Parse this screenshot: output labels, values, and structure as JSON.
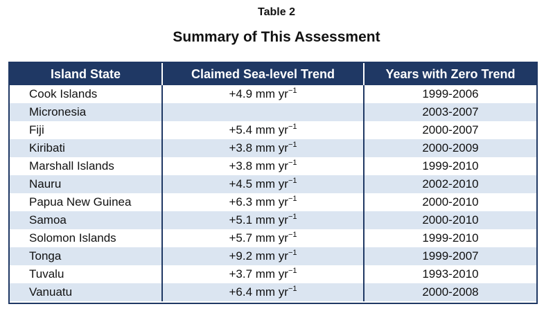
{
  "caption": {
    "label": "Table 2",
    "title": "Summary of This Assessment"
  },
  "table": {
    "headers": [
      "Island State",
      "Claimed Sea-level Trend",
      "Years with Zero Trend"
    ],
    "unit": "mm yr",
    "unit_exponent": "−1",
    "rows": [
      {
        "state": "Cook Islands",
        "trend": "+4.9",
        "years": "1999-2006"
      },
      {
        "state": "Micronesia",
        "trend": "",
        "years": "2003-2007"
      },
      {
        "state": "Fiji",
        "trend": "+5.4",
        "years": "2000-2007"
      },
      {
        "state": "Kiribati",
        "trend": "+3.8",
        "years": "2000-2009"
      },
      {
        "state": "Marshall Islands",
        "trend": "+3.8",
        "years": "1999-2010"
      },
      {
        "state": "Nauru",
        "trend": "+4.5",
        "years": "2002-2010"
      },
      {
        "state": "Papua New Guinea",
        "trend": "+6.3",
        "years": "2000-2010"
      },
      {
        "state": "Samoa",
        "trend": "+5.1",
        "years": "2000-2010"
      },
      {
        "state": "Solomon Islands",
        "trend": "+5.7",
        "years": "1999-2010"
      },
      {
        "state": "Tonga",
        "trend": "+9.2",
        "years": "1999-2007"
      },
      {
        "state": "Tuvalu",
        "trend": "+3.7",
        "years": "1993-2010"
      },
      {
        "state": "Vanuatu",
        "trend": "+6.4",
        "years": "2000-2008"
      }
    ]
  },
  "colors": {
    "header_bg": "#1f3864",
    "header_text": "#ffffff",
    "band_row": "#dbe5f1",
    "border": "#1f3864"
  }
}
